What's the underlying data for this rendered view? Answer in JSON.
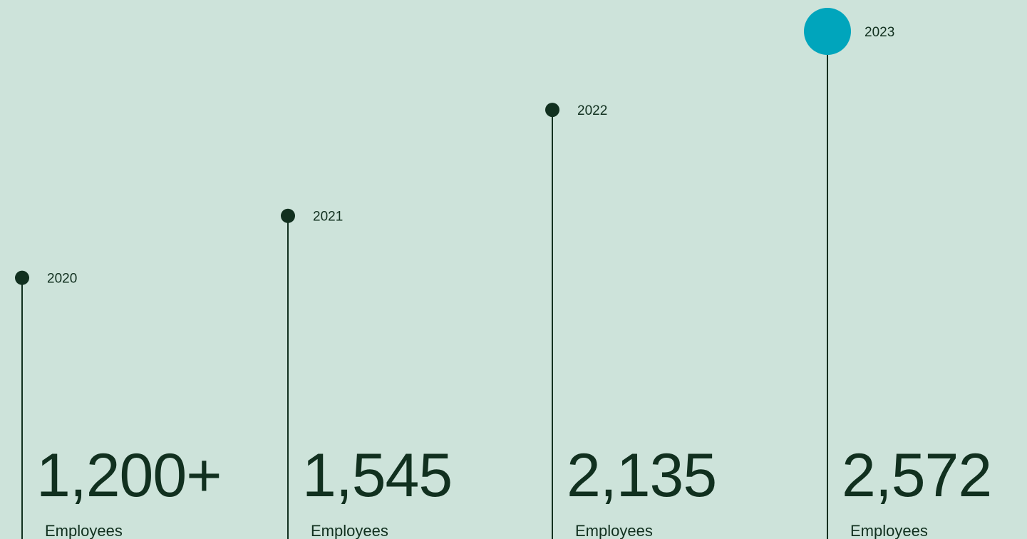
{
  "chart_data": {
    "type": "bar",
    "title": "",
    "xlabel": "",
    "ylabel": "",
    "categories": [
      "2020",
      "2021",
      "2022",
      "2023"
    ],
    "series": [
      {
        "values": [
          1200,
          1545,
          2135,
          2572
        ],
        "display": [
          "1,200+",
          "1,545",
          "2,135",
          "2,572"
        ],
        "unit": "Employees"
      }
    ],
    "highlight_index": 3,
    "colors": {
      "background": "#cde3da",
      "marker": "#11301f",
      "highlight": "#00a5bc",
      "text": "#11301f"
    },
    "grid": false,
    "legend": "none"
  }
}
